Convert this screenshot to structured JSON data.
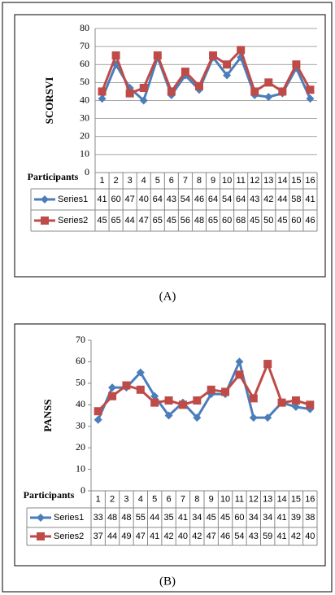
{
  "chart_data": [
    {
      "type": "line",
      "caption": "(A)",
      "y_label": "SCORSVI",
      "x_label": "Participants",
      "categories": [
        "1",
        "2",
        "3",
        "4",
        "5",
        "6",
        "7",
        "8",
        "9",
        "10",
        "11",
        "12",
        "13",
        "14",
        "15",
        "16"
      ],
      "series": [
        {
          "name": "Series1",
          "color": "#4a7ebb",
          "marker": "diamond",
          "values": [
            41,
            60,
            47,
            40,
            64,
            43,
            54,
            46,
            64,
            54,
            64,
            43,
            42,
            44,
            58,
            41
          ]
        },
        {
          "name": "Series2",
          "color": "#be4b48",
          "marker": "square",
          "values": [
            45,
            65,
            44,
            47,
            65,
            45,
            56,
            48,
            65,
            60,
            68,
            45,
            50,
            45,
            60,
            46
          ]
        }
      ],
      "ylim": [
        0,
        80
      ],
      "yticks": [
        0,
        10,
        20,
        30,
        40,
        50,
        60,
        70,
        80
      ],
      "grid": true
    },
    {
      "type": "line",
      "caption": "(B)",
      "y_label": "PANSS",
      "x_label": "Participants",
      "categories": [
        "1",
        "2",
        "3",
        "4",
        "5",
        "6",
        "7",
        "8",
        "9",
        "10",
        "11",
        "12",
        "13",
        "14",
        "15",
        "16"
      ],
      "series": [
        {
          "name": "Series1",
          "color": "#4a7ebb",
          "marker": "diamond",
          "values": [
            33,
            48,
            48,
            55,
            44,
            35,
            41,
            34,
            45,
            45,
            60,
            34,
            34,
            41,
            39,
            38
          ]
        },
        {
          "name": "Series2",
          "color": "#be4b48",
          "marker": "square",
          "values": [
            37,
            44,
            49,
            47,
            41,
            42,
            40,
            42,
            47,
            46,
            54,
            43,
            59,
            41,
            42,
            40
          ]
        }
      ],
      "ylim": [
        0,
        70
      ],
      "yticks": [
        0,
        10,
        20,
        30,
        40,
        50,
        60,
        70
      ],
      "grid": false
    }
  ]
}
